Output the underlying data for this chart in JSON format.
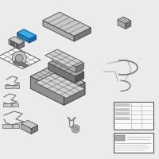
{
  "bg_color": "#ebebeb",
  "fig_width": 2.0,
  "fig_height": 2.0,
  "dpi": 100,
  "parts": {
    "highlight_color": "#3aaee0",
    "outline_color": "#444444",
    "gray_light": "#d0d0d0",
    "gray_mid": "#aaaaaa",
    "gray_dark": "#777777",
    "gray_vdark": "#555555",
    "black": "#333333",
    "white": "#f8f8f8",
    "bg_part": "#c8c8c8",
    "box_fill": "#bbbbbb",
    "tray_top": "#c0c0c0",
    "tray_side": "#909090",
    "tray_front": "#787878"
  }
}
